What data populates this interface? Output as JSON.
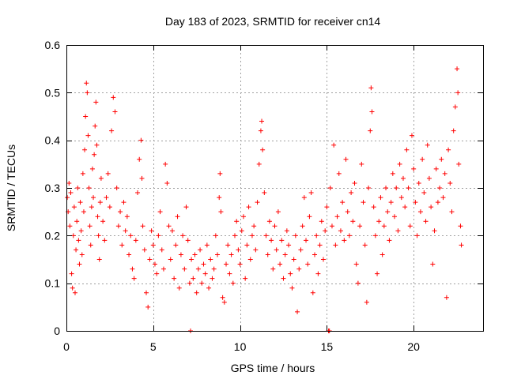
{
  "chart_data": {
    "type": "scatter",
    "title": "Day 183 of 2023, SRMTID for receiver cn14",
    "xlabel": "GPS time / hours",
    "ylabel": "SRMTID / TECUs",
    "xlim": [
      0,
      24
    ],
    "ylim": [
      0,
      0.6
    ],
    "xticks": [
      0,
      5,
      10,
      15,
      20
    ],
    "xtick_labels": [
      "0",
      "5",
      "10",
      "15",
      "20"
    ],
    "yticks": [
      0,
      0.1,
      0.2,
      0.3,
      0.4,
      0.5,
      0.6
    ],
    "ytick_labels": [
      "0",
      "0.1",
      "0.2",
      "0.3",
      "0.4",
      "0.5",
      "0.6"
    ],
    "grid": true,
    "marker": "+",
    "color": "#ff0000",
    "series": [
      {
        "name": "SRMTID",
        "points": [
          [
            0.05,
            0.28
          ],
          [
            0.1,
            0.25
          ],
          [
            0.15,
            0.31
          ],
          [
            0.2,
            0.22
          ],
          [
            0.25,
            0.29
          ],
          [
            0.3,
            0.12
          ],
          [
            0.35,
            0.09
          ],
          [
            0.4,
            0.2
          ],
          [
            0.45,
            0.26
          ],
          [
            0.5,
            0.08
          ],
          [
            0.55,
            0.17
          ],
          [
            0.6,
            0.23
          ],
          [
            0.65,
            0.3
          ],
          [
            0.7,
            0.19
          ],
          [
            0.75,
            0.14
          ],
          [
            0.8,
            0.27
          ],
          [
            0.85,
            0.21
          ],
          [
            0.9,
            0.16
          ],
          [
            0.95,
            0.33
          ],
          [
            1.0,
            0.25
          ],
          [
            1.05,
            0.38
          ],
          [
            1.1,
            0.45
          ],
          [
            1.15,
            0.52
          ],
          [
            1.2,
            0.5
          ],
          [
            1.25,
            0.41
          ],
          [
            1.3,
            0.3
          ],
          [
            1.35,
            0.22
          ],
          [
            1.4,
            0.18
          ],
          [
            1.45,
            0.26
          ],
          [
            1.5,
            0.34
          ],
          [
            1.55,
            0.28
          ],
          [
            1.6,
            0.37
          ],
          [
            1.65,
            0.43
          ],
          [
            1.7,
            0.48
          ],
          [
            1.75,
            0.39
          ],
          [
            1.8,
            0.24
          ],
          [
            1.85,
            0.2
          ],
          [
            1.9,
            0.15
          ],
          [
            1.95,
            0.27
          ],
          [
            2.0,
            0.32
          ],
          [
            2.1,
            0.23
          ],
          [
            2.2,
            0.19
          ],
          [
            2.3,
            0.28
          ],
          [
            2.4,
            0.33
          ],
          [
            2.5,
            0.26
          ],
          [
            2.6,
            0.42
          ],
          [
            2.7,
            0.49
          ],
          [
            2.8,
            0.46
          ],
          [
            2.9,
            0.3
          ],
          [
            3.0,
            0.22
          ],
          [
            3.1,
            0.25
          ],
          [
            3.2,
            0.18
          ],
          [
            3.3,
            0.27
          ],
          [
            3.4,
            0.21
          ],
          [
            3.5,
            0.24
          ],
          [
            3.6,
            0.16
          ],
          [
            3.7,
            0.2
          ],
          [
            3.8,
            0.13
          ],
          [
            3.9,
            0.11
          ],
          [
            4.0,
            0.19
          ],
          [
            4.1,
            0.29
          ],
          [
            4.2,
            0.36
          ],
          [
            4.3,
            0.4
          ],
          [
            4.35,
            0.32
          ],
          [
            4.4,
            0.22
          ],
          [
            4.5,
            0.17
          ],
          [
            4.6,
            0.08
          ],
          [
            4.7,
            0.05
          ],
          [
            4.8,
            0.15
          ],
          [
            4.9,
            0.21
          ],
          [
            5.0,
            0.18
          ],
          [
            5.1,
            0.14
          ],
          [
            5.2,
            0.12
          ],
          [
            5.3,
            0.2
          ],
          [
            5.4,
            0.25
          ],
          [
            5.5,
            0.17
          ],
          [
            5.6,
            0.13
          ],
          [
            5.7,
            0.35
          ],
          [
            5.8,
            0.31
          ],
          [
            5.9,
            0.22
          ],
          [
            6.0,
            0.15
          ],
          [
            6.1,
            0.21
          ],
          [
            6.2,
            0.11
          ],
          [
            6.3,
            0.18
          ],
          [
            6.4,
            0.24
          ],
          [
            6.5,
            0.09
          ],
          [
            6.6,
            0.16
          ],
          [
            6.7,
            0.2
          ],
          [
            6.8,
            0.13
          ],
          [
            6.9,
            0.26
          ],
          [
            7.0,
            0.19
          ],
          [
            7.1,
            0.1
          ],
          [
            7.15,
            0.0
          ],
          [
            7.2,
            0.15
          ],
          [
            7.3,
            0.11
          ],
          [
            7.4,
            0.16
          ],
          [
            7.5,
            0.08
          ],
          [
            7.6,
            0.13
          ],
          [
            7.7,
            0.17
          ],
          [
            7.8,
            0.1
          ],
          [
            7.9,
            0.14
          ],
          [
            8.0,
            0.12
          ],
          [
            8.1,
            0.18
          ],
          [
            8.2,
            0.09
          ],
          [
            8.3,
            0.15
          ],
          [
            8.4,
            0.11
          ],
          [
            8.5,
            0.13
          ],
          [
            8.6,
            0.2
          ],
          [
            8.7,
            0.16
          ],
          [
            8.8,
            0.28
          ],
          [
            8.85,
            0.33
          ],
          [
            8.9,
            0.25
          ],
          [
            9.0,
            0.07
          ],
          [
            9.1,
            0.06
          ],
          [
            9.2,
            0.14
          ],
          [
            9.3,
            0.18
          ],
          [
            9.4,
            0.12
          ],
          [
            9.5,
            0.16
          ],
          [
            9.6,
            0.1
          ],
          [
            9.7,
            0.2
          ],
          [
            9.8,
            0.23
          ],
          [
            9.9,
            0.17
          ],
          [
            10.0,
            0.14
          ],
          [
            10.1,
            0.21
          ],
          [
            10.2,
            0.24
          ],
          [
            10.3,
            0.11
          ],
          [
            10.4,
            0.18
          ],
          [
            10.5,
            0.26
          ],
          [
            10.6,
            0.15
          ],
          [
            10.7,
            0.2
          ],
          [
            10.8,
            0.22
          ],
          [
            10.9,
            0.17
          ],
          [
            11.0,
            0.27
          ],
          [
            11.1,
            0.35
          ],
          [
            11.2,
            0.42
          ],
          [
            11.25,
            0.44
          ],
          [
            11.3,
            0.38
          ],
          [
            11.4,
            0.29
          ],
          [
            11.5,
            0.2
          ],
          [
            11.6,
            0.16
          ],
          [
            11.7,
            0.23
          ],
          [
            11.8,
            0.19
          ],
          [
            11.9,
            0.13
          ],
          [
            12.0,
            0.22
          ],
          [
            12.1,
            0.17
          ],
          [
            12.2,
            0.25
          ],
          [
            12.3,
            0.14
          ],
          [
            12.4,
            0.19
          ],
          [
            12.5,
            0.11
          ],
          [
            12.6,
            0.16
          ],
          [
            12.7,
            0.21
          ],
          [
            12.8,
            0.18
          ],
          [
            12.9,
            0.12
          ],
          [
            13.0,
            0.09
          ],
          [
            13.1,
            0.15
          ],
          [
            13.2,
            0.2
          ],
          [
            13.3,
            0.04
          ],
          [
            13.4,
            0.13
          ],
          [
            13.5,
            0.17
          ],
          [
            13.6,
            0.22
          ],
          [
            13.7,
            0.28
          ],
          [
            13.8,
            0.19
          ],
          [
            13.9,
            0.14
          ],
          [
            14.0,
            0.24
          ],
          [
            14.1,
            0.29
          ],
          [
            14.2,
            0.08
          ],
          [
            14.3,
            0.16
          ],
          [
            14.4,
            0.2
          ],
          [
            14.5,
            0.12
          ],
          [
            14.6,
            0.18
          ],
          [
            14.7,
            0.23
          ],
          [
            14.8,
            0.15
          ],
          [
            14.9,
            0.21
          ],
          [
            15.0,
            0.26
          ],
          [
            15.1,
            0.0
          ],
          [
            15.15,
            0.0
          ],
          [
            15.2,
            0.3
          ],
          [
            15.3,
            0.22
          ],
          [
            15.4,
            0.39
          ],
          [
            15.5,
            0.18
          ],
          [
            15.6,
            0.24
          ],
          [
            15.7,
            0.33
          ],
          [
            15.8,
            0.21
          ],
          [
            15.9,
            0.27
          ],
          [
            16.0,
            0.19
          ],
          [
            16.1,
            0.36
          ],
          [
            16.2,
            0.25
          ],
          [
            16.3,
            0.2
          ],
          [
            16.4,
            0.29
          ],
          [
            16.5,
            0.23
          ],
          [
            16.6,
            0.31
          ],
          [
            16.7,
            0.14
          ],
          [
            16.8,
            0.1
          ],
          [
            16.9,
            0.22
          ],
          [
            17.0,
            0.35
          ],
          [
            17.1,
            0.27
          ],
          [
            17.2,
            0.18
          ],
          [
            17.3,
            0.06
          ],
          [
            17.4,
            0.3
          ],
          [
            17.5,
            0.42
          ],
          [
            17.55,
            0.51
          ],
          [
            17.6,
            0.46
          ],
          [
            17.7,
            0.26
          ],
          [
            17.8,
            0.2
          ],
          [
            17.9,
            0.12
          ],
          [
            18.0,
            0.23
          ],
          [
            18.1,
            0.28
          ],
          [
            18.2,
            0.16
          ],
          [
            18.3,
            0.22
          ],
          [
            18.4,
            0.3
          ],
          [
            18.5,
            0.25
          ],
          [
            18.6,
            0.19
          ],
          [
            18.7,
            0.27
          ],
          [
            18.8,
            0.33
          ],
          [
            18.9,
            0.24
          ],
          [
            19.0,
            0.3
          ],
          [
            19.1,
            0.21
          ],
          [
            19.2,
            0.35
          ],
          [
            19.3,
            0.28
          ],
          [
            19.4,
            0.32
          ],
          [
            19.5,
            0.26
          ],
          [
            19.6,
            0.38
          ],
          [
            19.7,
            0.3
          ],
          [
            19.8,
            0.22
          ],
          [
            19.9,
            0.41
          ],
          [
            20.0,
            0.34
          ],
          [
            20.1,
            0.27
          ],
          [
            20.2,
            0.2
          ],
          [
            20.3,
            0.31
          ],
          [
            20.4,
            0.25
          ],
          [
            20.5,
            0.36
          ],
          [
            20.6,
            0.29
          ],
          [
            20.7,
            0.23
          ],
          [
            20.8,
            0.39
          ],
          [
            20.9,
            0.32
          ],
          [
            21.0,
            0.26
          ],
          [
            21.1,
            0.14
          ],
          [
            21.2,
            0.21
          ],
          [
            21.3,
            0.34
          ],
          [
            21.4,
            0.27
          ],
          [
            21.5,
            0.3
          ],
          [
            21.6,
            0.36
          ],
          [
            21.7,
            0.28
          ],
          [
            21.8,
            0.33
          ],
          [
            21.9,
            0.07
          ],
          [
            22.0,
            0.38
          ],
          [
            22.1,
            0.31
          ],
          [
            22.2,
            0.25
          ],
          [
            22.3,
            0.42
          ],
          [
            22.4,
            0.47
          ],
          [
            22.5,
            0.55
          ],
          [
            22.55,
            0.5
          ],
          [
            22.6,
            0.35
          ],
          [
            22.7,
            0.22
          ],
          [
            22.75,
            0.18
          ]
        ]
      }
    ]
  }
}
